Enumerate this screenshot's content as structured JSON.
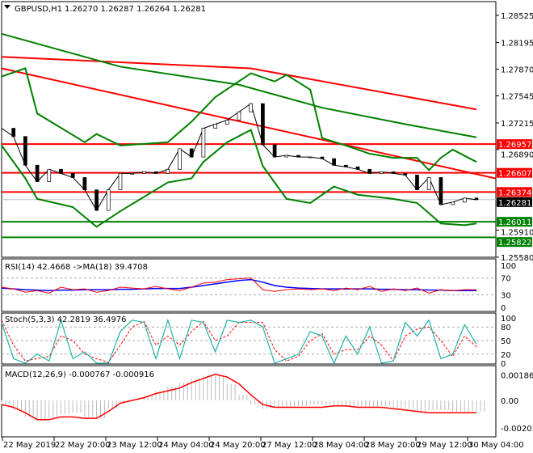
{
  "header": {
    "symbol": "GBPUSD,H1",
    "ohlc": "1.26270 1.26287 1.26264 1.26281"
  },
  "price_axis": [
    "1.28525",
    "1.28195",
    "1.27870",
    "1.27545",
    "1.27215",
    "1.26890",
    "1.25910",
    "1.25580"
  ],
  "price_levels": [
    {
      "label": "1.26957",
      "value": 1.26957,
      "color": "#ff0000"
    },
    {
      "label": "1.26607",
      "value": 1.26607,
      "color": "#ff0000"
    },
    {
      "label": "1.26374",
      "value": 1.26374,
      "color": "#ff0000"
    },
    {
      "label": "1.26281",
      "value": 1.26281,
      "color": "#000000",
      "current": true
    },
    {
      "label": "1.26011",
      "value": 1.26011,
      "color": "#008000"
    },
    {
      "label": "1.25822",
      "value": 1.25822,
      "color": "#008000"
    }
  ],
  "time_axis": [
    "22 May 2019",
    "22 May 20:00",
    "23 May 12:00",
    "24 May 04:00",
    "24 May 20:00",
    "27 May 12:00",
    "28 May 04:00",
    "28 May 20:00",
    "29 May 12:00",
    "30 May 04:00"
  ],
  "chart_data": {
    "type": "line",
    "close": [
      1.2715,
      1.2705,
      1.267,
      1.265,
      1.2665,
      1.266,
      1.2655,
      1.264,
      1.2615,
      1.264,
      1.266,
      1.266,
      1.2662,
      1.266,
      1.2665,
      1.269,
      1.268,
      1.2715,
      1.272,
      1.2725,
      1.2735,
      1.2745,
      1.2695,
      1.268,
      1.2682,
      1.268,
      1.268,
      1.2678,
      1.267,
      1.2668,
      1.2665,
      1.266,
      1.2662,
      1.266,
      1.2658,
      1.264,
      1.2655,
      1.2622,
      1.2625,
      1.263,
      1.2628
    ],
    "bb_upper": [
      [
        0,
        1.2778
      ],
      [
        2,
        1.2788
      ],
      [
        3,
        1.2733
      ],
      [
        7,
        1.2698
      ],
      [
        8,
        1.2708
      ],
      [
        10,
        1.2694
      ],
      [
        14,
        1.2698
      ],
      [
        16,
        1.2723
      ],
      [
        18,
        1.2753
      ],
      [
        21,
        1.2782
      ],
      [
        23,
        1.2772
      ],
      [
        24,
        1.278
      ],
      [
        26,
        1.2762
      ],
      [
        27,
        1.2703
      ],
      [
        29,
        1.2694
      ],
      [
        31,
        1.2684
      ],
      [
        33,
        1.2679
      ],
      [
        35,
        1.2679
      ],
      [
        36,
        1.2664
      ],
      [
        37,
        1.2679
      ],
      [
        38,
        1.2689
      ],
      [
        40,
        1.2674
      ]
    ],
    "bb_lower": [
      [
        0,
        1.2694
      ],
      [
        2,
        1.2654
      ],
      [
        3,
        1.2629
      ],
      [
        6,
        1.2619
      ],
      [
        8,
        1.2595
      ],
      [
        10,
        1.2614
      ],
      [
        14,
        1.2649
      ],
      [
        16,
        1.2654
      ],
      [
        17,
        1.2674
      ],
      [
        19,
        1.2698
      ],
      [
        21,
        1.2713
      ],
      [
        22,
        1.2669
      ],
      [
        24,
        1.2629
      ],
      [
        26,
        1.2624
      ],
      [
        28,
        1.2644
      ],
      [
        30,
        1.2634
      ],
      [
        33,
        1.2629
      ],
      [
        35,
        1.2624
      ],
      [
        37,
        1.2599
      ],
      [
        39,
        1.2597
      ],
      [
        40,
        1.2599
      ]
    ],
    "slow_ma": [
      [
        0,
        1.283
      ],
      [
        10,
        1.279
      ],
      [
        20,
        1.2768
      ],
      [
        27,
        1.274
      ],
      [
        34,
        1.272
      ],
      [
        40,
        1.2704
      ]
    ],
    "long_ma": [
      [
        0,
        1.2802
      ],
      [
        21,
        1.2788
      ],
      [
        40,
        1.2738
      ]
    ],
    "trendline": [
      [
        0,
        1.2788
      ],
      [
        41.6,
        1.2654
      ]
    ],
    "rsi": {
      "label": "RSI(14) 42.4668  ->MA(18) 39.4708",
      "axis": [
        "100",
        "70",
        "30",
        "0"
      ],
      "rsi": [
        48,
        44,
        36,
        40,
        34,
        48,
        42,
        44,
        36,
        40,
        48,
        46,
        44,
        50,
        44,
        40,
        48,
        58,
        60,
        66,
        68,
        70,
        42,
        38,
        42,
        44,
        42,
        44,
        40,
        46,
        42,
        50,
        38,
        44,
        40,
        46,
        34,
        42,
        40,
        42,
        42
      ],
      "ma": [
        46,
        44,
        42,
        41,
        40,
        41,
        41,
        42,
        42,
        42,
        43,
        43,
        44,
        45,
        45,
        45,
        48,
        52,
        56,
        60,
        64,
        66,
        60,
        52,
        48,
        46,
        45,
        44,
        44,
        44,
        44,
        44,
        43,
        43,
        42,
        42,
        41,
        41,
        40,
        40,
        40
      ]
    },
    "stoch": {
      "label": "Stoch(5,3,3) 42.2819 36.4976",
      "axis": [
        "100",
        "80",
        "50",
        "20",
        "0"
      ],
      "main": [
        90,
        10,
        0,
        20,
        5,
        95,
        10,
        25,
        0,
        0,
        70,
        95,
        90,
        10,
        95,
        10,
        95,
        90,
        25,
        95,
        90,
        95,
        80,
        0,
        10,
        20,
        70,
        60,
        0,
        60,
        20,
        80,
        0,
        5,
        90,
        60,
        95,
        10,
        20,
        85,
        42
      ],
      "signal": [
        95,
        40,
        5,
        10,
        15,
        60,
        50,
        20,
        10,
        2,
        40,
        80,
        92,
        40,
        60,
        40,
        70,
        92,
        50,
        60,
        90,
        90,
        90,
        30,
        5,
        15,
        50,
        65,
        20,
        30,
        30,
        60,
        40,
        5,
        60,
        75,
        80,
        50,
        15,
        60,
        36
      ]
    },
    "macd": {
      "label": "MACD(12,26,9) -0.000767 -0.000916",
      "axis": [
        "0.001861",
        "0.00",
        "-0.002011"
      ],
      "signal": [
        -0.0003,
        -0.0005,
        -0.0009,
        -0.0014,
        -0.0014,
        -0.0012,
        -0.0012,
        -0.0013,
        -0.0013,
        -0.0008,
        -0.0002,
        0.0,
        0.0002,
        0.0005,
        0.0007,
        0.0009,
        0.0013,
        0.0016,
        0.0019,
        0.0017,
        0.0012,
        0.0004,
        -0.0003,
        -0.0005,
        -0.0005,
        -0.0005,
        -0.0005,
        -0.0005,
        -0.0004,
        -0.0004,
        -0.0005,
        -0.0005,
        -0.0005,
        -0.0006,
        -0.0007,
        -0.0008,
        -0.0009,
        -0.0009,
        -0.0009,
        -0.0009,
        -0.0009
      ],
      "hist": [
        -0.0003,
        -0.0007,
        -0.0012,
        -0.0015,
        -0.0013,
        -0.001,
        -0.0009,
        -0.0012,
        -0.0013,
        -0.0006,
        -0.0002,
        0.0,
        0.0003,
        0.0007,
        0.001,
        0.0013,
        0.0016,
        0.0018,
        0.0018,
        0.0012,
        0.0004,
        -0.0003,
        -0.0006,
        -0.0005,
        -0.0005,
        -0.0004,
        -0.0003,
        -0.0003,
        -0.0004,
        -0.0005,
        -0.0005,
        -0.0005,
        -0.0004,
        -0.0006,
        -0.0006,
        -0.0008,
        -0.0007,
        -0.0007,
        -0.0008,
        -0.0008,
        -0.0008
      ]
    }
  }
}
